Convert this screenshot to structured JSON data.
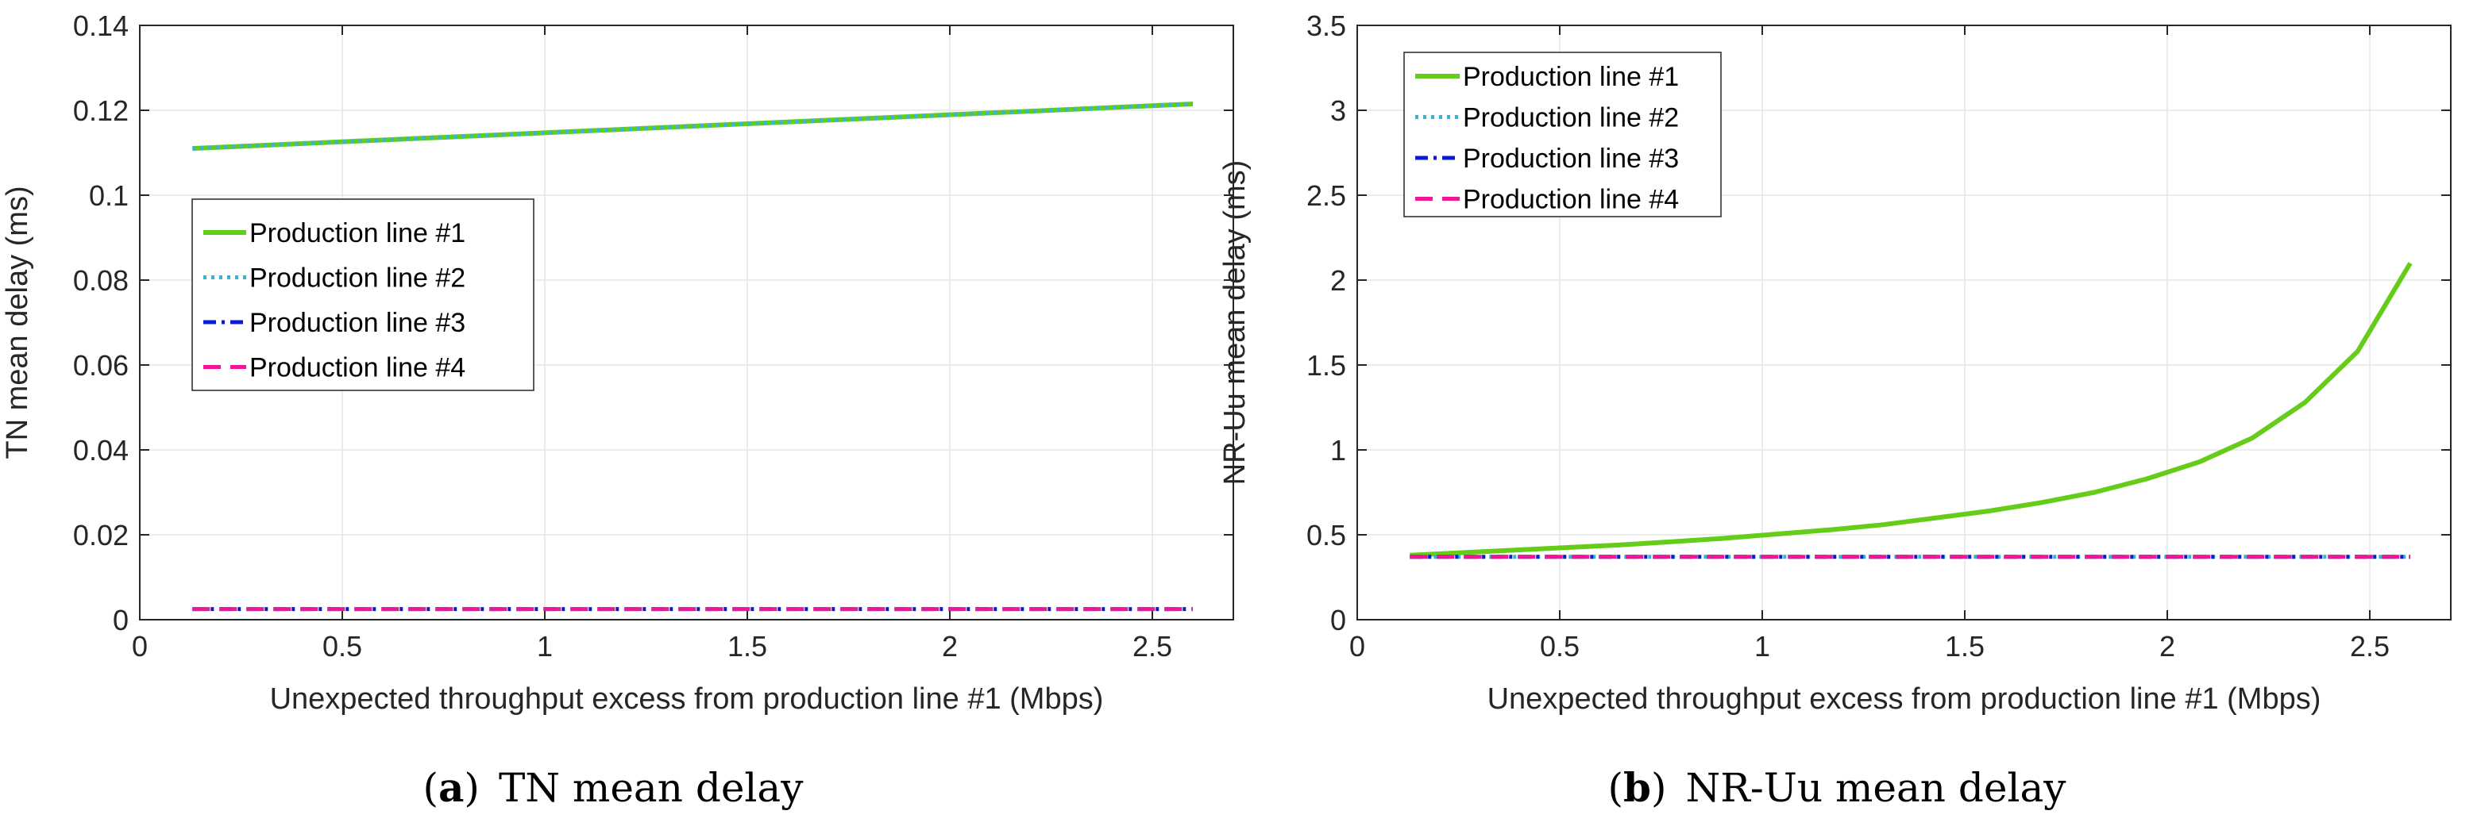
{
  "chart_data": [
    {
      "type": "line",
      "caption_letter": "a",
      "caption_title": "TN mean delay",
      "xlabel": "Unexpected throughput excess from production line #1 (Mbps)",
      "ylabel": "TN mean delay (ms)",
      "xlim": [
        0,
        2.7
      ],
      "ylim": [
        0,
        0.14
      ],
      "xticks": [
        0,
        0.5,
        1,
        1.5,
        2,
        2.5
      ],
      "xtick_labels": [
        "0",
        "0.5",
        "1",
        "1.5",
        "2",
        "2.5"
      ],
      "yticks": [
        0,
        0.02,
        0.04,
        0.06,
        0.08,
        0.1,
        0.12,
        0.14
      ],
      "ytick_labels": [
        "0",
        "0.02",
        "0.04",
        "0.06",
        "0.08",
        "0.1",
        "0.12",
        "0.14"
      ],
      "grid": true,
      "legend_position": "center-left",
      "series": [
        {
          "name": "Production line #1",
          "color": "#66cc1a",
          "style": "solid",
          "x": [
            0.13,
            2.6
          ],
          "y": [
            0.111,
            0.1215
          ]
        },
        {
          "name": "Production line #2",
          "color": "#33b5d9",
          "style": "dotted",
          "x": [
            0.13,
            2.6
          ],
          "y": [
            0.111,
            0.1215
          ]
        },
        {
          "name": "Production line #3",
          "color": "#0a1ad9",
          "style": "dashdot",
          "x": [
            0.13,
            2.6
          ],
          "y": [
            0.0025,
            0.0025
          ]
        },
        {
          "name": "Production line #4",
          "color": "#f0169a",
          "style": "dashed",
          "x": [
            0.13,
            2.6
          ],
          "y": [
            0.0025,
            0.0025
          ]
        }
      ]
    },
    {
      "type": "line",
      "caption_letter": "b",
      "caption_title": "NR-Uu mean delay",
      "xlabel": "Unexpected throughput excess from production line #1 (Mbps)",
      "ylabel": "NR-Uu mean delay (ms)",
      "xlim": [
        0,
        2.7
      ],
      "ylim": [
        0,
        3.5
      ],
      "xticks": [
        0,
        0.5,
        1,
        1.5,
        2,
        2.5
      ],
      "xtick_labels": [
        "0",
        "0.5",
        "1",
        "1.5",
        "2",
        "2.5"
      ],
      "yticks": [
        0,
        0.5,
        1,
        1.5,
        2,
        2.5,
        3,
        3.5
      ],
      "ytick_labels": [
        "0",
        "0.5",
        "1",
        "1.5",
        "2",
        "2.5",
        "3",
        "3.5"
      ],
      "grid": true,
      "legend_position": "top-left",
      "series": [
        {
          "name": "Production line #1",
          "color": "#66cc1a",
          "style": "solid",
          "x": [
            0.13,
            0.26,
            0.39,
            0.52,
            0.65,
            0.78,
            0.91,
            1.04,
            1.17,
            1.3,
            1.43,
            1.56,
            1.69,
            1.82,
            1.95,
            2.08,
            2.21,
            2.34,
            2.47,
            2.6
          ],
          "y": [
            0.38,
            0.395,
            0.41,
            0.425,
            0.44,
            0.46,
            0.48,
            0.505,
            0.53,
            0.56,
            0.6,
            0.64,
            0.69,
            0.75,
            0.83,
            0.93,
            1.07,
            1.28,
            1.58,
            2.1
          ]
        },
        {
          "name": "Production line #2",
          "color": "#33b5d9",
          "style": "dotted",
          "x": [
            0.13,
            2.6
          ],
          "y": [
            0.37,
            0.37
          ]
        },
        {
          "name": "Production line #3",
          "color": "#0a1ad9",
          "style": "dashdot",
          "x": [
            0.13,
            2.6
          ],
          "y": [
            0.37,
            0.37
          ]
        },
        {
          "name": "Production line #4",
          "color": "#f0169a",
          "style": "dashed",
          "x": [
            0.13,
            2.6
          ],
          "y": [
            0.37,
            0.37
          ]
        }
      ]
    }
  ]
}
